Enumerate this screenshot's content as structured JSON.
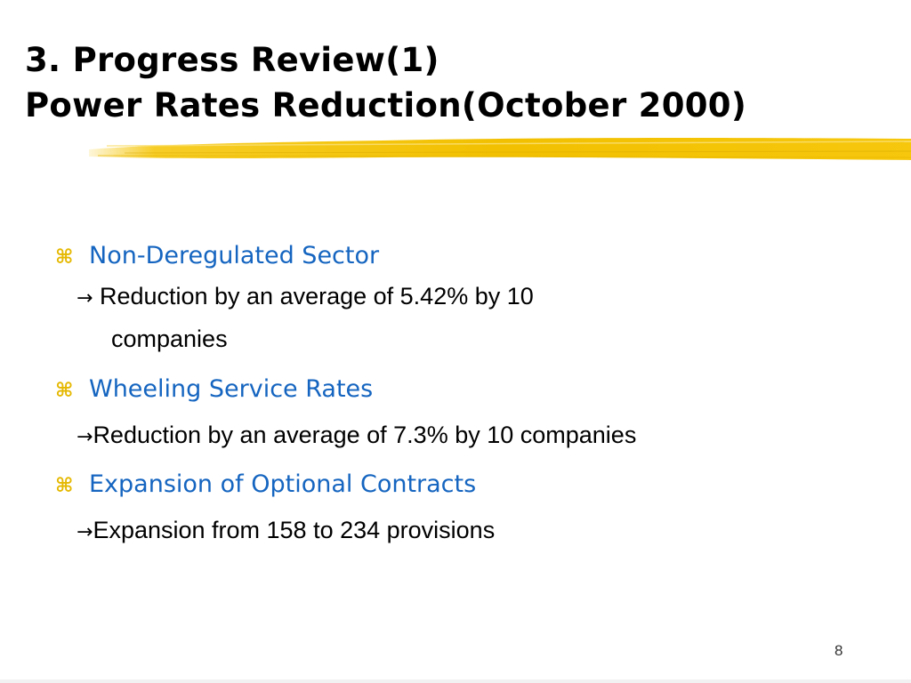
{
  "slide": {
    "title_line1": "3. Progress Review(1)",
    "title_line2": "Power Rates Reduction(October 2000)",
    "accent_color": "#f5c400",
    "heading_color": "#1565c0",
    "bullet_icon": "command-icon",
    "bullet_symbol": "⌘",
    "arrow_symbol": "→",
    "bullets": [
      {
        "heading": "Non-Deregulated Sector",
        "detail_line1": " Reduction by an average of  5.42% by 10",
        "detail_line2": "companies"
      },
      {
        "heading": "Wheeling Service Rates",
        "detail_line1": "Reduction by  an average of 7.3% by 10 companies"
      },
      {
        "heading": "Expansion of Optional Contracts",
        "detail_line1": "Expansion from 158 to 234 provisions"
      }
    ],
    "page_number": "8"
  }
}
